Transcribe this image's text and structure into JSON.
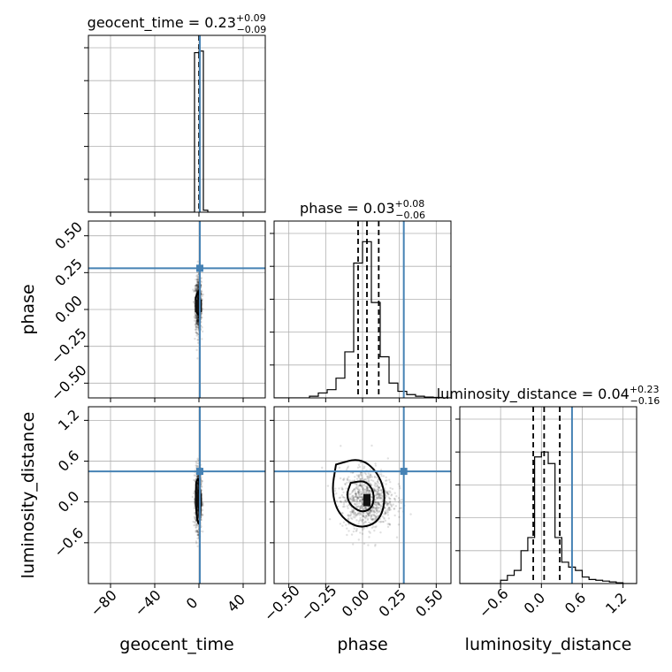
{
  "chart_data": {
    "type": "corner",
    "parameters": [
      "geocent_time",
      "phase",
      "luminosity_distance"
    ],
    "axis_labels": [
      "geocent_time",
      "phase",
      "luminosity_distance"
    ],
    "ranges": [
      [
        -100,
        60
      ],
      [
        -0.6,
        0.6
      ],
      [
        -1.2,
        1.4
      ]
    ],
    "ticks": [
      {
        "values": [
          -80,
          -40,
          0,
          40
        ],
        "labels": [
          "−80",
          "−40",
          "0",
          "40"
        ]
      },
      {
        "values": [
          -0.5,
          -0.25,
          0.0,
          0.25,
          0.5
        ],
        "labels": [
          "−0.50",
          "−0.25",
          "0.00",
          "0.25",
          "0.50"
        ]
      },
      {
        "values": [
          -0.6,
          0.0,
          0.6,
          1.2
        ],
        "labels": [
          "−0.6",
          "0.0",
          "0.6",
          "1.2"
        ]
      }
    ],
    "titles": [
      {
        "name": "geocent_time",
        "median": "0.23",
        "plus": "+0.09",
        "minus": "−0.09"
      },
      {
        "name": "phase",
        "median": "0.03",
        "plus": "+0.08",
        "minus": "−0.06"
      },
      {
        "name": "luminosity_distance",
        "median": "0.04",
        "plus": "+0.23",
        "minus": "−0.16"
      }
    ],
    "truths": [
      0.8,
      0.28,
      0.45
    ],
    "quantiles": [
      [
        0.14,
        0.23,
        0.32
      ],
      [
        -0.03,
        0.03,
        0.11
      ],
      [
        -0.12,
        0.04,
        0.27
      ]
    ],
    "histograms": [
      {
        "edges": [
          -100,
          -96,
          -92,
          -88,
          -84,
          -80,
          -76,
          -72,
          -68,
          -64,
          -60,
          -56,
          -52,
          -48,
          -44,
          -40,
          -36,
          -32,
          -28,
          -24,
          -20,
          -16,
          -12,
          -8,
          -4,
          0,
          4,
          8,
          12,
          16,
          20,
          24,
          28,
          32,
          36,
          40,
          44,
          48,
          52,
          56,
          60
        ],
        "counts": [
          0,
          0,
          0,
          0,
          0,
          0,
          0,
          0,
          0,
          0,
          0,
          0,
          0,
          0,
          0,
          0,
          0,
          0,
          0,
          0,
          0,
          0,
          0,
          0,
          0.97,
          0.98,
          0.012,
          0,
          0,
          0,
          0,
          0,
          0,
          0,
          0,
          0,
          0,
          0,
          0,
          0
        ],
        "ymax": 1.0
      },
      {
        "edges": [
          -0.6,
          -0.54,
          -0.48,
          -0.42,
          -0.36,
          -0.3,
          -0.24,
          -0.18,
          -0.12,
          -0.06,
          0.0,
          0.06,
          0.12,
          0.18,
          0.24,
          0.3,
          0.36,
          0.42,
          0.48,
          0.54,
          0.6
        ],
        "counts": [
          0,
          0,
          0,
          0,
          0.01,
          0.03,
          0.05,
          0.12,
          0.28,
          0.82,
          0.95,
          0.58,
          0.25,
          0.09,
          0.04,
          0.02,
          0.01,
          0.005,
          0.003,
          0
        ],
        "ymax": 1.0
      },
      {
        "edges": [
          -1.2,
          -1.1,
          -1.0,
          -0.9,
          -0.8,
          -0.7,
          -0.6,
          -0.5,
          -0.4,
          -0.3,
          -0.2,
          -0.1,
          0.0,
          0.1,
          0.2,
          0.3,
          0.4,
          0.5,
          0.6,
          0.7,
          0.8,
          0.9,
          1.0,
          1.1,
          1.2,
          1.3,
          1.4
        ],
        "counts": [
          0,
          0,
          0,
          0,
          0,
          0,
          0.02,
          0.05,
          0.08,
          0.2,
          0.28,
          0.77,
          0.8,
          0.73,
          0.28,
          0.13,
          0.1,
          0.08,
          0.04,
          0.025,
          0.02,
          0.015,
          0.01,
          0.005,
          0,
          0
        ],
        "ymax": 1.0
      }
    ],
    "scatter_2d": [
      {
        "x_param": 0,
        "y_param": 1,
        "x_center": -0.5,
        "x_spread": 1.4,
        "y_center": 0.03,
        "y_spread": 0.09
      },
      {
        "x_param": 0,
        "y_param": 2,
        "x_center": -0.5,
        "x_spread": 1.4,
        "y_center": 0.04,
        "y_spread": 0.22
      },
      {
        "x_param": 1,
        "y_param": 2,
        "x_center": 0.03,
        "x_spread": 0.09,
        "y_center": 0.04,
        "y_spread": 0.22
      }
    ],
    "contours_2d": [
      {
        "x_param": 1,
        "y_param": 2,
        "levels": [
          [
            [
              -0.18,
              0.55
            ],
            [
              -0.02,
              0.65
            ],
            [
              0.1,
              0.45
            ],
            [
              0.16,
              0.1
            ],
            [
              0.12,
              -0.28
            ],
            [
              -0.02,
              -0.4
            ],
            [
              -0.16,
              -0.2
            ],
            [
              -0.21,
              0.15
            ]
          ],
          [
            [
              -0.08,
              0.28
            ],
            [
              0.02,
              0.32
            ],
            [
              0.08,
              0.15
            ],
            [
              0.07,
              -0.08
            ],
            [
              0.0,
              -0.16
            ],
            [
              -0.08,
              -0.06
            ],
            [
              -0.11,
              0.1
            ]
          ]
        ]
      },
      {
        "x_param": 0,
        "y_param": 2,
        "levels": [
          [
            [
              -2.5,
              0.28
            ],
            [
              -0.2,
              0.38
            ],
            [
              1.8,
              0.05
            ],
            [
              0.8,
              -0.35
            ],
            [
              -1.6,
              -0.28
            ],
            [
              -3.0,
              0.0
            ]
          ]
        ]
      },
      {
        "x_param": 0,
        "y_param": 1,
        "levels": [
          [
            [
              -3.0,
              0.08
            ],
            [
              -0.5,
              0.13
            ],
            [
              1.6,
              0.05
            ],
            [
              0.6,
              -0.04
            ],
            [
              -2.2,
              -0.03
            ]
          ]
        ]
      }
    ],
    "grid": true
  }
}
